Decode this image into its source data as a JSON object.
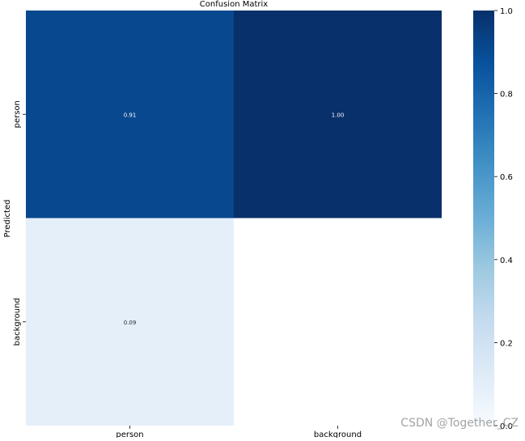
{
  "chart_data": {
    "type": "heatmap",
    "title": "Confusion Matrix",
    "ylabel": "Predicted",
    "xlabel": "",
    "x_categories": [
      "person",
      "background"
    ],
    "y_categories": [
      "person",
      "background"
    ],
    "values": [
      [
        0.91,
        1.0
      ],
      [
        0.09,
        null
      ]
    ],
    "value_labels": [
      [
        "0.91",
        "1.00"
      ],
      [
        "0.09",
        ""
      ]
    ],
    "colormap": "Blues",
    "colorbar": {
      "range": [
        0.0,
        1.0
      ],
      "ticks": [
        "0.0",
        "0.2",
        "0.4",
        "0.6",
        "0.8",
        "1.0"
      ]
    }
  },
  "watermark": "CSDN @Together_CZ"
}
